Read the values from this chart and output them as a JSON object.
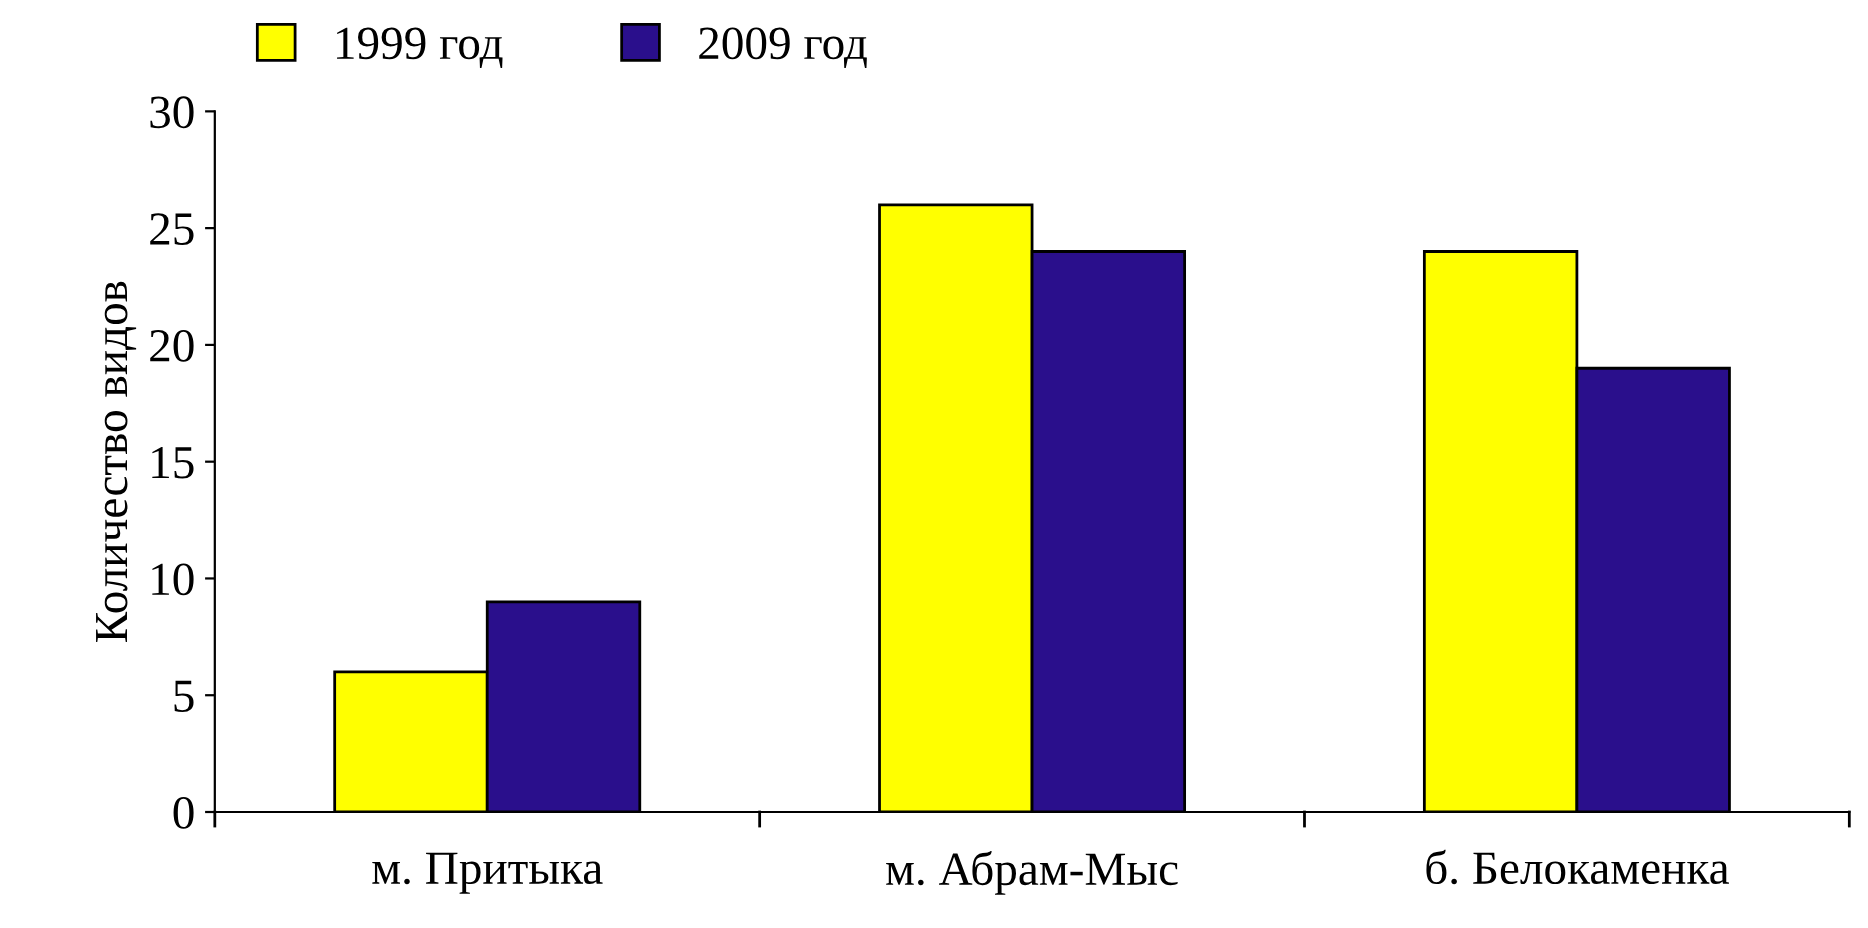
{
  "chart_data": {
    "type": "bar",
    "ylabel": "Количество видов",
    "categories": [
      "м. Притыка",
      "м. Абрам-Мыс",
      "б. Белокаменка"
    ],
    "series": [
      {
        "name": "1999 год",
        "color": "#ffff00",
        "values": [
          6,
          26,
          24
        ]
      },
      {
        "name": "2009 год",
        "color": "#2a0f8c",
        "values": [
          9,
          24,
          19
        ]
      }
    ],
    "ylim": [
      0,
      30
    ],
    "yticks": [
      0,
      5,
      10,
      15,
      20,
      25,
      30
    ],
    "grid": false,
    "legend": "top left"
  }
}
